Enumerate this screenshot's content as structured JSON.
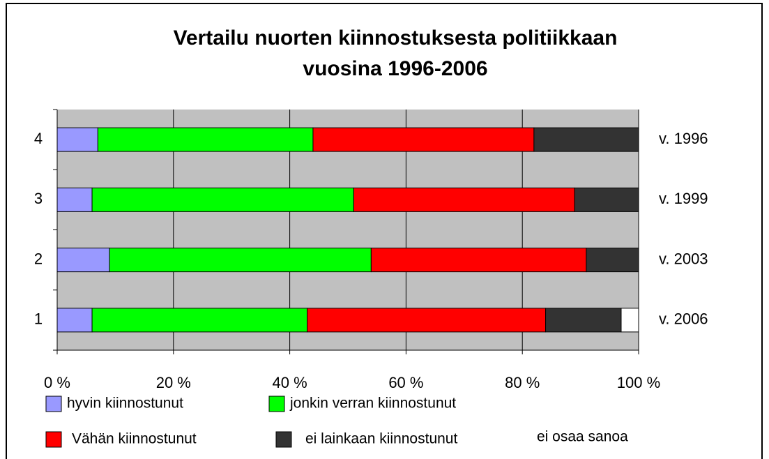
{
  "chart_data": {
    "type": "stacked_bar_horizontal",
    "title_lines": [
      "Vertailu nuorten kiinnostuksesta politiikkaan",
      "vuosina 1996-2006"
    ],
    "categories": [
      "1",
      "2",
      "3",
      "4"
    ],
    "right_labels": [
      "v. 2006",
      "v. 2003",
      "v. 1999",
      "v. 1996"
    ],
    "series": [
      {
        "name": "hyvin kiinnostunut",
        "color": "#9999ff",
        "values": [
          6,
          9,
          6,
          7
        ]
      },
      {
        "name": "jonkin verran kiinnostunut",
        "color": "#00ff00",
        "values": [
          37,
          45,
          45,
          37
        ]
      },
      {
        "name": "Vähän kiinnostunut",
        "color": "#ff0000",
        "values": [
          41,
          37,
          38,
          38
        ]
      },
      {
        "name": "ei lainkaan kiinnostunut",
        "color": "#333333",
        "values": [
          13,
          9,
          11,
          18
        ]
      },
      {
        "name": "ei osaa sanoa",
        "color": "#ffffff",
        "values": [
          3,
          0,
          0,
          0
        ]
      }
    ],
    "xlim": [
      0,
      100
    ],
    "xticks": [
      {
        "value": 0,
        "label": "0 %"
      },
      {
        "value": 20,
        "label": "20 %"
      },
      {
        "value": 40,
        "label": "40 %"
      },
      {
        "value": 60,
        "label": "60 %"
      },
      {
        "value": 80,
        "label": "80 %"
      },
      {
        "value": 100,
        "label": "100 %"
      }
    ],
    "grid": true
  }
}
